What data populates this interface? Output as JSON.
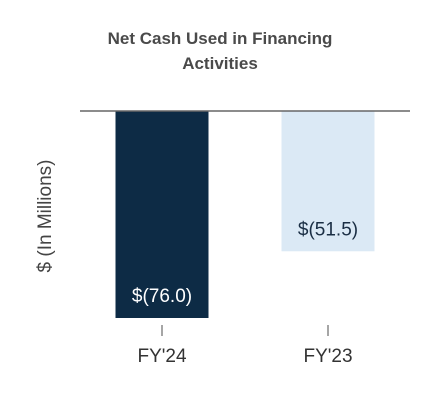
{
  "chart_data": {
    "type": "bar",
    "title": "Net Cash Used in Financing Activities",
    "ylabel": "$ (In Millions)",
    "categories": [
      "FY'24",
      "FY'23"
    ],
    "values": [
      -76.0,
      -51.5
    ],
    "value_labels": [
      "$(76.0)",
      "$(51.5)"
    ],
    "colors": [
      "#0d2b45",
      "#dbe9f5"
    ],
    "ylim": [
      -76,
      0
    ]
  }
}
